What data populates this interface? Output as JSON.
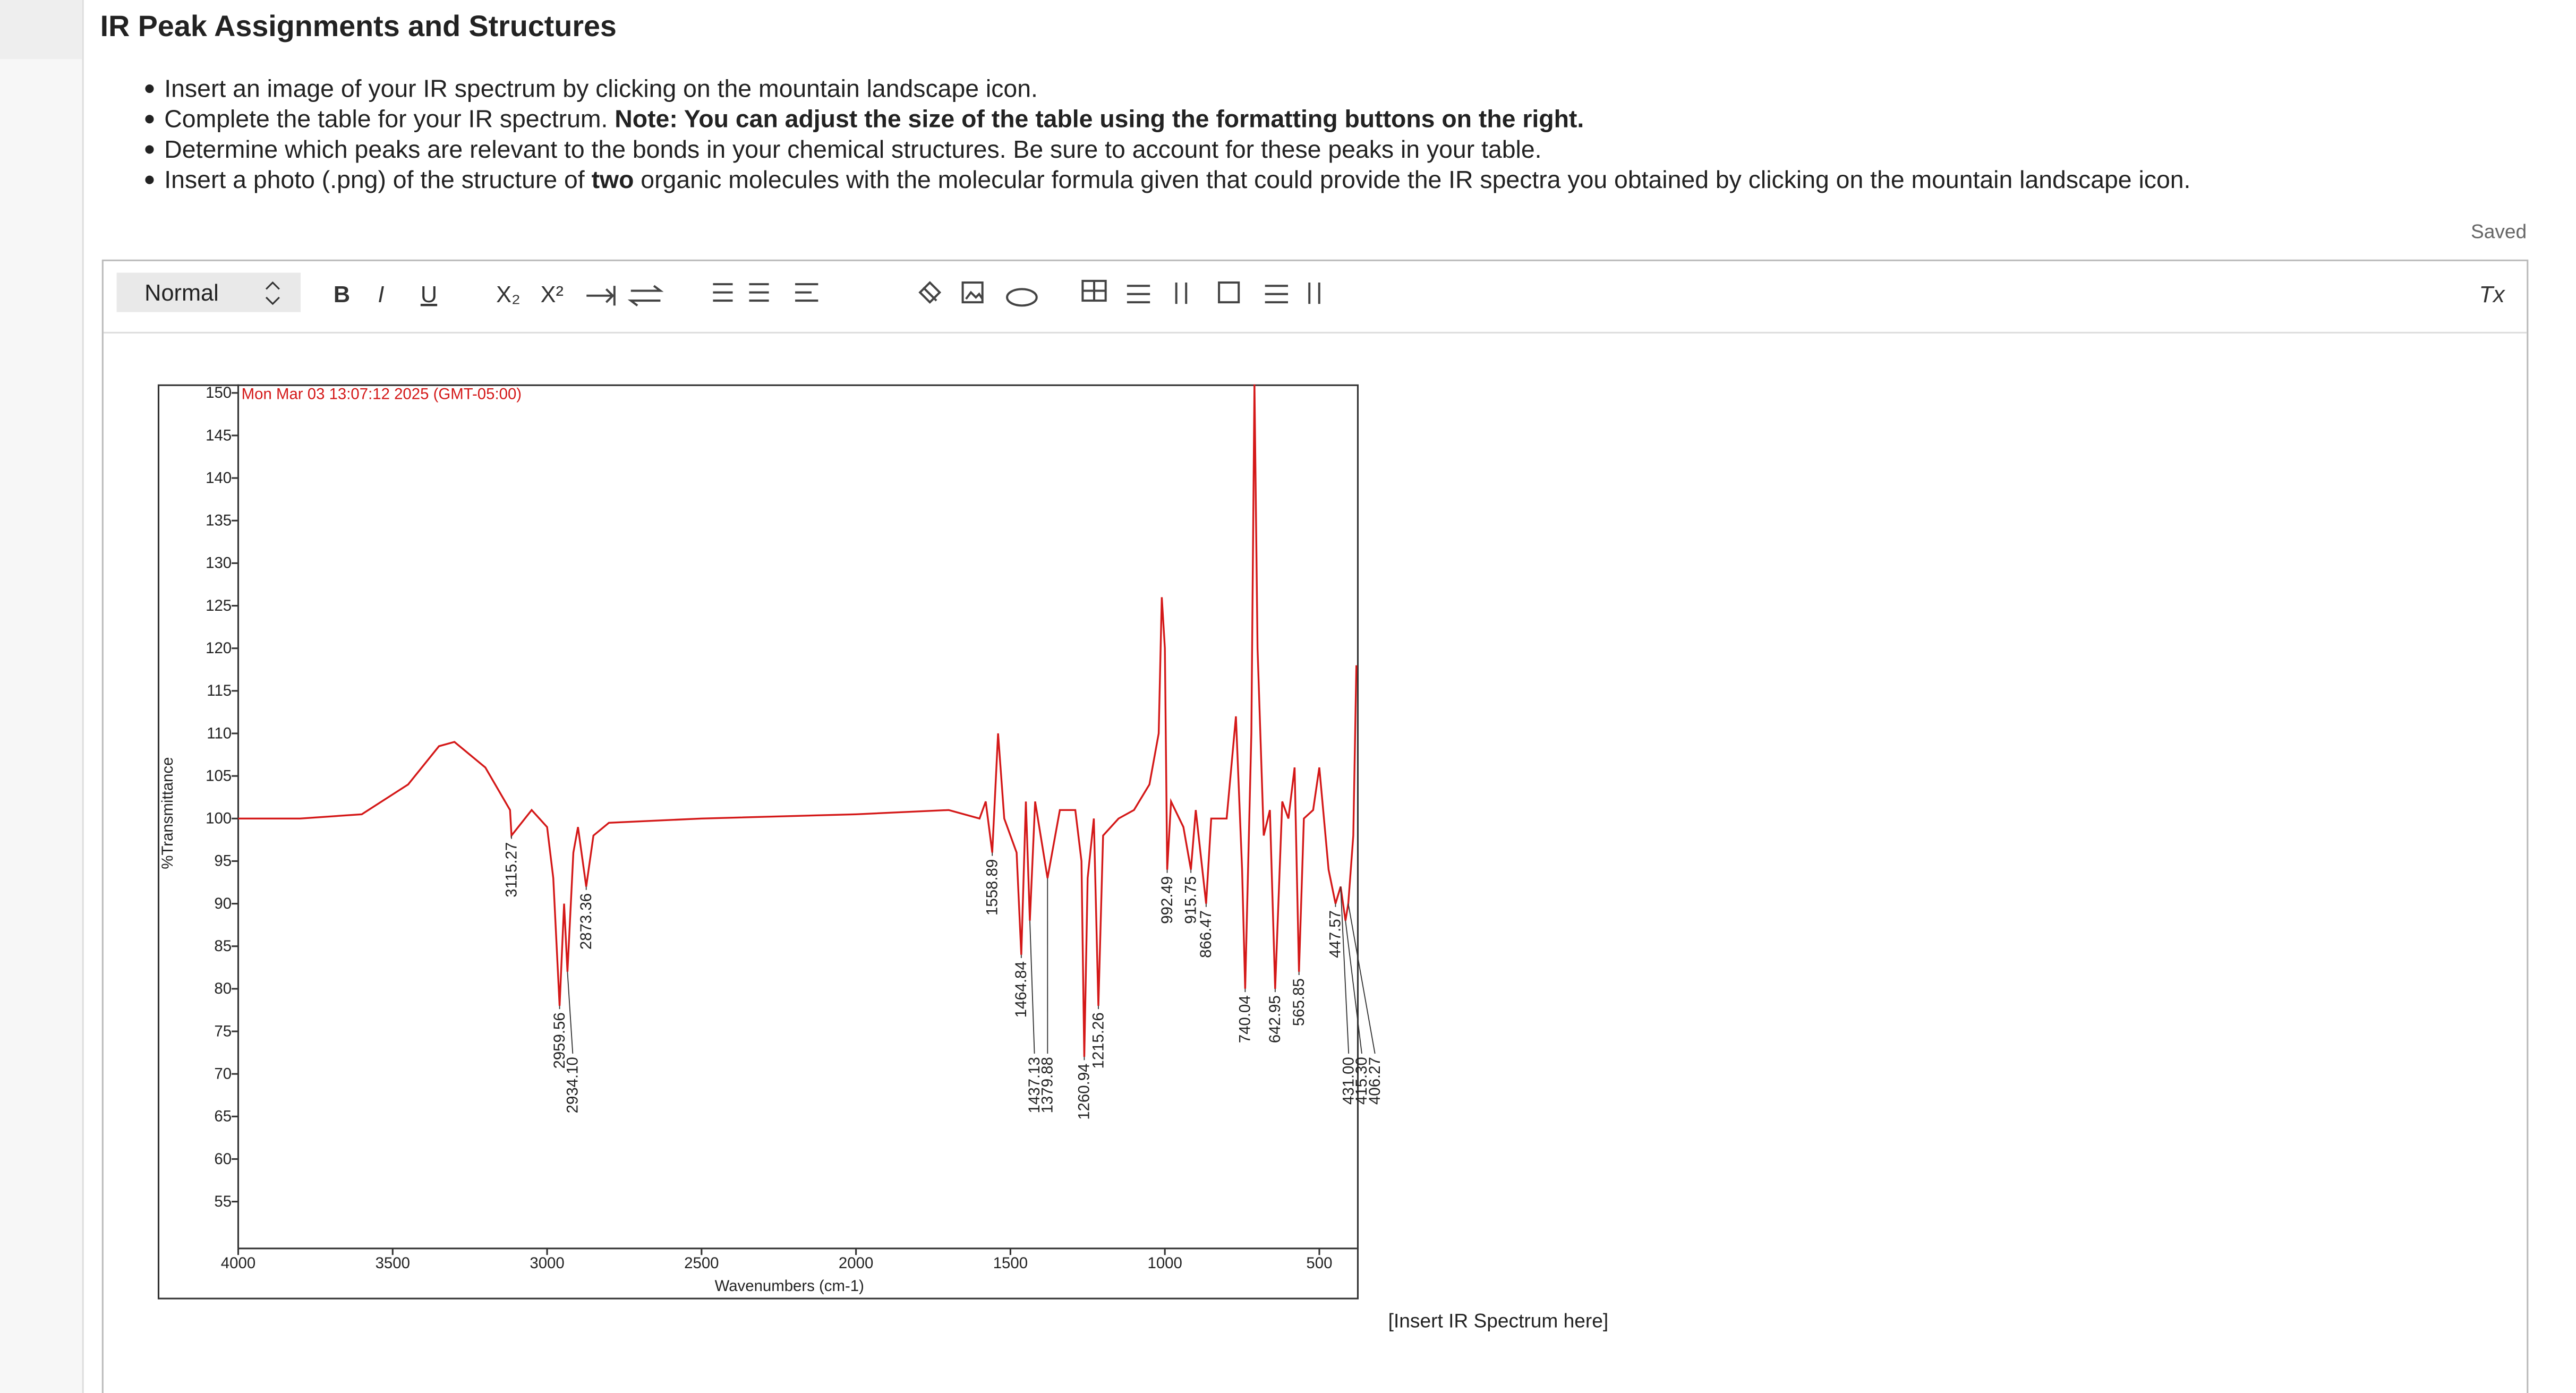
{
  "header": {
    "title": "IR Peak Assignments and Structures"
  },
  "instructions": [
    [
      {
        "text": "Insert an image of your IR spectrum by clicking on the mountain landscape icon."
      }
    ],
    [
      {
        "text": "Complete the table for your IR spectrum. "
      },
      {
        "text": "Note: You can adjust the size of the table using the formatting buttons on the right.",
        "bold": true
      }
    ],
    [
      {
        "text": "Determine which peaks are relevant to the bonds in your chemical structures. Be sure to account for these peaks in your table."
      }
    ],
    [
      {
        "text": "Insert a photo (.png) of the structure of "
      },
      {
        "text": "two",
        "bold": true
      },
      {
        "text": " organic molecules with the molecular formula given that could provide the IR spectra you obtained by clicking on the mountain landscape icon."
      }
    ]
  ],
  "status": "Saved",
  "toolbar": {
    "style": "Normal",
    "buttons": [
      "B",
      "I",
      "U",
      "X₂",
      "X²"
    ],
    "clear": "Tx"
  },
  "spectrum": {
    "type": "line",
    "timestamp": "Mon Mar 03 13:07:12 2025 (GMT-05:00)",
    "x_label": "Wavenumbers (cm-1)",
    "y_label": "%Transmittance",
    "xlim": [
      4000,
      378
    ],
    "ylim": [
      49.5,
      151
    ],
    "xticks": [
      4000,
      3500,
      3000,
      2500,
      2000,
      1500,
      1000,
      500
    ],
    "yticks": [
      150,
      145,
      140,
      135,
      130,
      125,
      120,
      115,
      110,
      105,
      100,
      95,
      90,
      85,
      80,
      75,
      70,
      65,
      60,
      55
    ],
    "color": "#d41818",
    "x": [
      4000,
      3800,
      3600,
      3450,
      3350,
      3300,
      3200,
      3120,
      3115.27,
      3050,
      3000,
      2980,
      2959.56,
      2945,
      2934.1,
      2915,
      2900,
      2873.36,
      2850,
      2800,
      2500,
      2000,
      1700,
      1600,
      1580,
      1558.89,
      1540,
      1520,
      1480,
      1464.84,
      1450,
      1437.13,
      1420,
      1379.88,
      1340,
      1290,
      1270,
      1260.94,
      1250,
      1230,
      1215.26,
      1200,
      1150,
      1100,
      1050,
      1020,
      1010,
      1000,
      992.49,
      980,
      940,
      915.75,
      900,
      866.47,
      850,
      800,
      770,
      750,
      740.04,
      720,
      710,
      700,
      680,
      660,
      642.95,
      620,
      600,
      580,
      565.85,
      550,
      520,
      500,
      470,
      447.57,
      431,
      415.3,
      406.27,
      390,
      380
    ],
    "values": [
      100,
      100,
      100.5,
      104,
      108.5,
      109,
      106,
      101,
      98,
      101,
      99,
      93,
      78,
      90,
      82,
      96,
      99,
      92,
      98,
      99.5,
      100,
      100.5,
      101,
      100,
      102,
      96,
      110,
      100,
      96,
      84,
      102,
      88,
      102,
      93,
      101,
      101,
      95,
      72,
      93,
      100,
      78,
      98,
      100,
      101,
      104,
      110,
      126,
      120,
      94,
      102,
      99,
      94,
      101,
      90,
      100,
      100,
      112,
      94,
      80,
      110,
      151,
      120,
      98,
      101,
      80,
      102,
      100,
      106,
      82,
      100,
      101,
      106,
      94,
      90,
      92,
      88,
      90,
      98,
      118
    ],
    "peaks": [
      {
        "value": 3115.27,
        "label": "3115.27"
      },
      {
        "value": 2959.56,
        "label": "2959.56"
      },
      {
        "value": 2934.1,
        "label": "2934.10"
      },
      {
        "value": 2873.36,
        "label": "2873.36"
      },
      {
        "value": 1558.89,
        "label": "1558.89"
      },
      {
        "value": 1464.84,
        "label": "1464.84"
      },
      {
        "value": 1437.13,
        "label": "1437.13"
      },
      {
        "value": 1379.88,
        "label": "1379.88"
      },
      {
        "value": 1260.94,
        "label": "1260.94"
      },
      {
        "value": 1215.26,
        "label": "1215.26"
      },
      {
        "value": 992.49,
        "label": "992.49"
      },
      {
        "value": 915.75,
        "label": "915.75"
      },
      {
        "value": 866.47,
        "label": "866.47"
      },
      {
        "value": 740.04,
        "label": "740.04"
      },
      {
        "value": 642.95,
        "label": "642.95"
      },
      {
        "value": 565.85,
        "label": "565.85"
      },
      {
        "value": 447.57,
        "label": "447.57"
      },
      {
        "value": 431,
        "label": "431.00"
      },
      {
        "value": 415.3,
        "label": "415.30"
      },
      {
        "value": 406.27,
        "label": "406.27"
      }
    ]
  },
  "caption": "[Insert IR Spectrum here]"
}
